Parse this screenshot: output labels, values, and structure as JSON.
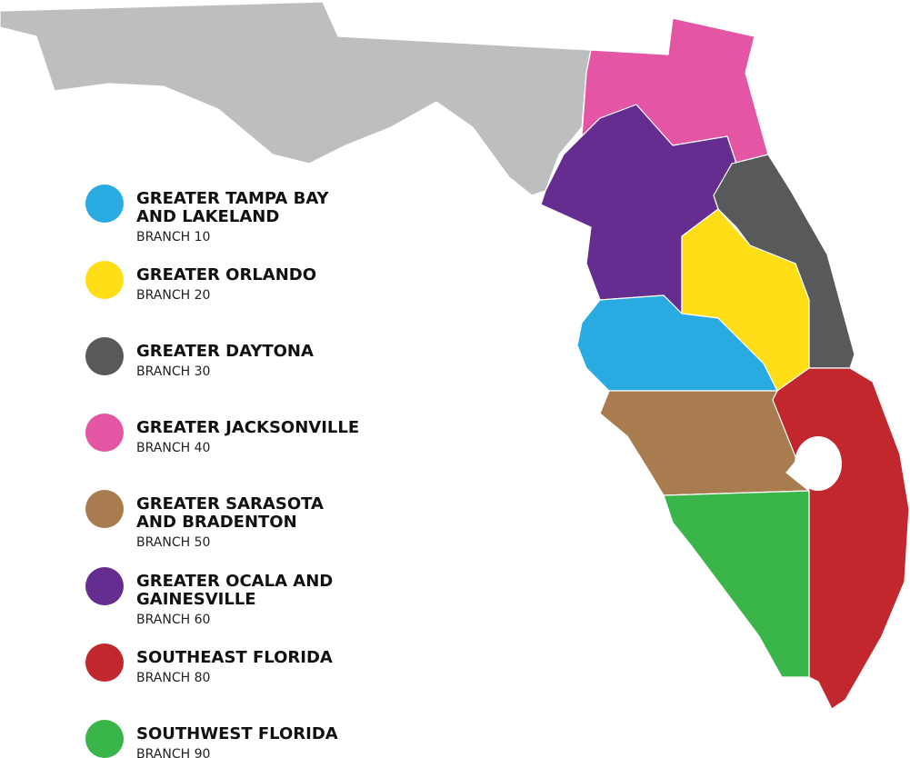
{
  "legend": [
    {
      "name_lines": [
        "GREATER TAMPA BAY",
        "AND LAKELAND"
      ],
      "branch": "BRANCH 10",
      "color": "#29abe2"
    },
    {
      "name_lines": [
        "GREATER ORLANDO"
      ],
      "branch": "BRANCH 20",
      "color": "#ffde17"
    },
    {
      "name_lines": [
        "GREATER DAYTONA"
      ],
      "branch": "BRANCH 30",
      "color": "#58595b"
    },
    {
      "name_lines": [
        "GREATER JACKSONVILLE"
      ],
      "branch": "BRANCH 40",
      "color": "#e455a4"
    },
    {
      "name_lines": [
        "GREATER SARASOTA",
        "AND BRADENTON"
      ],
      "branch": "BRANCH 50",
      "color": "#a97c50"
    },
    {
      "name_lines": [
        "GREATER OCALA AND",
        "GAINESVILLE"
      ],
      "branch": "BRANCH 60",
      "color": "#662d91"
    },
    {
      "name_lines": [
        "SOUTHEAST FLORIDA"
      ],
      "branch": "BRANCH 80",
      "color": "#c1272d"
    },
    {
      "name_lines": [
        "SOUTHWEST FLORIDA"
      ],
      "branch": "BRANCH 90",
      "color": "#39b54a"
    }
  ]
}
